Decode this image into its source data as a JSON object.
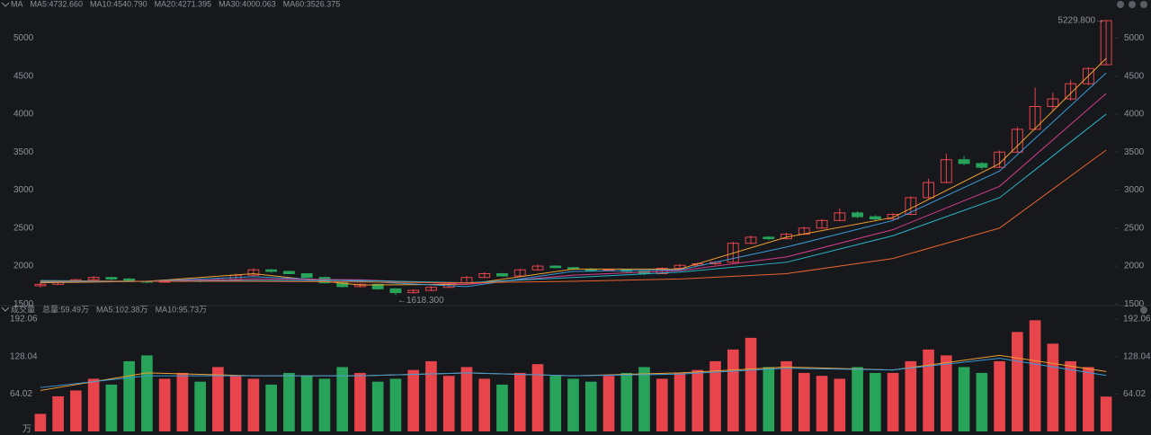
{
  "chart_data": [
    {
      "type": "candlestick",
      "title": "MA",
      "up_color": "#e8444b",
      "down_color": "#27a35a",
      "ylim": [
        1480,
        5360
      ],
      "yticks": [
        1500,
        2000,
        2500,
        3000,
        3500,
        4000,
        4500,
        5000
      ],
      "ohlc": [
        [
          1740,
          1785,
          1720,
          1760
        ],
        [
          1760,
          1800,
          1750,
          1790
        ],
        [
          1790,
          1830,
          1780,
          1820
        ],
        [
          1820,
          1870,
          1810,
          1850
        ],
        [
          1850,
          1860,
          1815,
          1830
        ],
        [
          1830,
          1840,
          1790,
          1800
        ],
        [
          1800,
          1815,
          1775,
          1790
        ],
        [
          1790,
          1815,
          1780,
          1800
        ],
        [
          1800,
          1825,
          1790,
          1810
        ],
        [
          1810,
          1820,
          1785,
          1800
        ],
        [
          1800,
          1835,
          1795,
          1820
        ],
        [
          1820,
          1900,
          1815,
          1880
        ],
        [
          1880,
          1975,
          1870,
          1950
        ],
        [
          1950,
          1965,
          1915,
          1930
        ],
        [
          1930,
          1940,
          1890,
          1900
        ],
        [
          1900,
          1910,
          1840,
          1850
        ],
        [
          1850,
          1860,
          1770,
          1780
        ],
        [
          1780,
          1790,
          1715,
          1730
        ],
        [
          1730,
          1775,
          1720,
          1760
        ],
        [
          1760,
          1770,
          1690,
          1700
        ],
        [
          1700,
          1710,
          1618.3,
          1650
        ],
        [
          1650,
          1695,
          1640,
          1680
        ],
        [
          1680,
          1735,
          1670,
          1720
        ],
        [
          1720,
          1795,
          1710,
          1780
        ],
        [
          1780,
          1870,
          1770,
          1850
        ],
        [
          1850,
          1920,
          1840,
          1900
        ],
        [
          1900,
          1910,
          1860,
          1870
        ],
        [
          1870,
          1965,
          1865,
          1950
        ],
        [
          1950,
          2020,
          1940,
          2000
        ],
        [
          2000,
          2010,
          1970,
          1980
        ],
        [
          1980,
          1990,
          1950,
          1960
        ],
        [
          1960,
          1975,
          1925,
          1940
        ],
        [
          1940,
          1965,
          1930,
          1950
        ],
        [
          1950,
          1960,
          1915,
          1930
        ],
        [
          1930,
          1940,
          1880,
          1900
        ],
        [
          1900,
          1985,
          1895,
          1970
        ],
        [
          1970,
          2025,
          1960,
          2010
        ],
        [
          2010,
          2045,
          2000,
          2030
        ],
        [
          2030,
          2065,
          2015,
          2050
        ],
        [
          2050,
          2320,
          2045,
          2300
        ],
        [
          2300,
          2400,
          2290,
          2380
        ],
        [
          2380,
          2395,
          2340,
          2360
        ],
        [
          2360,
          2440,
          2350,
          2420
        ],
        [
          2420,
          2520,
          2410,
          2500
        ],
        [
          2500,
          2620,
          2490,
          2600
        ],
        [
          2600,
          2760,
          2590,
          2700
        ],
        [
          2700,
          2720,
          2630,
          2650
        ],
        [
          2650,
          2670,
          2600,
          2620
        ],
        [
          2620,
          2700,
          2610,
          2680
        ],
        [
          2680,
          2920,
          2670,
          2900
        ],
        [
          2900,
          3150,
          2890,
          3100
        ],
        [
          3100,
          3480,
          3090,
          3400
        ],
        [
          3400,
          3450,
          3330,
          3350
        ],
        [
          3350,
          3370,
          3270,
          3300
        ],
        [
          3300,
          3520,
          3290,
          3500
        ],
        [
          3500,
          3830,
          3490,
          3800
        ],
        [
          3800,
          4350,
          3790,
          4100
        ],
        [
          4100,
          4280,
          4050,
          4200
        ],
        [
          4200,
          4450,
          4180,
          4400
        ],
        [
          4400,
          4620,
          4380,
          4600
        ],
        [
          4650,
          5229.8,
          4640,
          5229.8
        ]
      ],
      "ma_x": [
        0,
        6,
        12,
        18,
        24,
        30,
        36,
        42,
        48,
        54,
        60
      ],
      "series": [
        {
          "name": "MA5:4732.660",
          "color": "#f0a030",
          "values": [
            1780,
            1800,
            1900,
            1750,
            1760,
            1960,
            1960,
            2380,
            2640,
            3350,
            4732.66
          ]
        },
        {
          "name": "MA10:4540.790",
          "color": "#3a9ad9",
          "values": [
            1790,
            1800,
            1860,
            1800,
            1730,
            1930,
            1950,
            2250,
            2600,
            3250,
            4540.79
          ]
        },
        {
          "name": "MA20:4271.395",
          "color": "#d23c8c",
          "values": [
            1800,
            1800,
            1830,
            1820,
            1760,
            1880,
            1940,
            2120,
            2480,
            3050,
            4271.395
          ]
        },
        {
          "name": "MA30:4000.063",
          "color": "#28b4c8",
          "values": [
            1810,
            1800,
            1810,
            1810,
            1780,
            1850,
            1920,
            2050,
            2400,
            2900,
            4000.063
          ]
        },
        {
          "name": "MA60:3526.375",
          "color": "#e8642c",
          "values": [
            1800,
            1800,
            1800,
            1790,
            1780,
            1800,
            1830,
            1900,
            2100,
            2500,
            3526.375
          ]
        }
      ],
      "annotations": [
        {
          "text": "5229.800→"
        },
        {
          "text": "←1618.300"
        }
      ]
    },
    {
      "type": "bar",
      "title": "成交量",
      "total_label": "总量:59.49万",
      "total_color": "#e8444b",
      "ylim": [
        0,
        192.06
      ],
      "yticks": [
        64.02,
        128.04,
        192.06
      ],
      "unit": "万",
      "values": [
        30,
        60,
        70,
        90,
        80,
        120,
        130,
        90,
        100,
        85,
        110,
        95,
        90,
        80,
        100,
        95,
        90,
        110,
        100,
        85,
        90,
        105,
        120,
        95,
        110,
        90,
        80,
        100,
        115,
        95,
        90,
        85,
        95,
        100,
        110,
        90,
        100,
        105,
        120,
        140,
        160,
        110,
        120,
        100,
        95,
        90,
        110,
        100,
        100,
        120,
        140,
        130,
        110,
        100,
        120,
        170,
        190,
        150,
        120,
        110,
        59.49
      ],
      "ma_x": [
        0,
        6,
        12,
        18,
        24,
        30,
        36,
        42,
        48,
        54,
        60
      ],
      "series": [
        {
          "name": "MA5:102.38万",
          "color": "#f0a030",
          "values": [
            70,
            100,
            95,
            95,
            100,
            95,
            100,
            110,
            105,
            130,
            102.38
          ]
        },
        {
          "name": "MA10:95.73万",
          "color": "#3a9ad9",
          "values": [
            75,
            95,
            95,
            95,
            100,
            95,
            98,
            108,
            105,
            125,
            95.73
          ]
        }
      ]
    }
  ]
}
